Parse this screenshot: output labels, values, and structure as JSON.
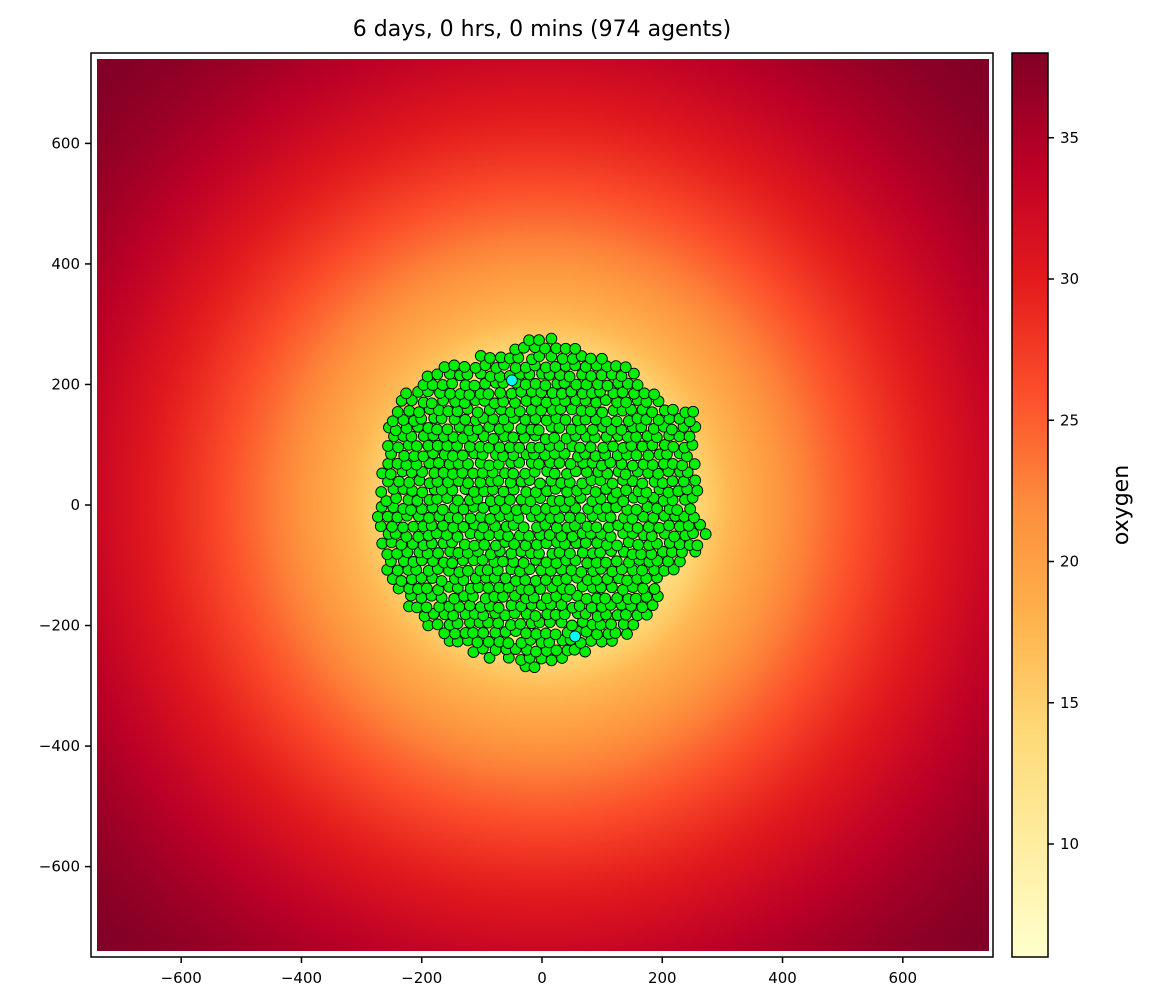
{
  "chart_data": {
    "type": "heatmap",
    "title": "6 days, 0 hrs, 0 mins (974 agents)",
    "xlim": [
      -750,
      750
    ],
    "ylim": [
      -750,
      750
    ],
    "x_ticks": [
      -600,
      -400,
      -200,
      0,
      200,
      400,
      600
    ],
    "y_ticks": [
      -600,
      -400,
      -200,
      0,
      200,
      400,
      600
    ],
    "x_tick_labels": [
      "−600",
      "−400",
      "−200",
      "0",
      "200",
      "400",
      "600"
    ],
    "y_tick_labels": [
      "−600",
      "−400",
      "−200",
      "0",
      "200",
      "400",
      "600"
    ],
    "grid": false,
    "field": {
      "name": "oxygen",
      "center": [
        0,
        0
      ],
      "value_at_center": 6.2,
      "value_at_corner": 38,
      "inner_radius": 300
    },
    "colorbar": {
      "label": "oxygen",
      "range": [
        6,
        38
      ],
      "ticks": [
        10,
        15,
        20,
        25,
        30,
        35
      ],
      "colormap": [
        "#ffffcc",
        "#ffeda0",
        "#fed976",
        "#feb24c",
        "#fd8d3c",
        "#fc4e2a",
        "#e31a1c",
        "#bd0026",
        "#800026"
      ]
    },
    "agents": {
      "count": 974,
      "marker_radius": 9,
      "fill_color": "#00ee00",
      "edge_color": "#000000",
      "highlight_color": "#00ffff",
      "highlights": [
        [
          -50,
          207
        ],
        [
          55,
          -218
        ]
      ],
      "outline": [
        [
          -270,
          30
        ],
        [
          -268,
          90
        ],
        [
          -240,
          180
        ],
        [
          -190,
          215
        ],
        [
          -140,
          240
        ],
        [
          -90,
          255
        ],
        [
          -50,
          262
        ],
        [
          -25,
          275
        ],
        [
          10,
          280
        ],
        [
          40,
          268
        ],
        [
          80,
          250
        ],
        [
          120,
          238
        ],
        [
          150,
          225
        ],
        [
          185,
          190
        ],
        [
          215,
          165
        ],
        [
          255,
          155
        ],
        [
          258,
          100
        ],
        [
          260,
          40
        ],
        [
          255,
          -20
        ],
        [
          285,
          -52
        ],
        [
          240,
          -95
        ],
        [
          205,
          -120
        ],
        [
          195,
          -160
        ],
        [
          165,
          -195
        ],
        [
          130,
          -230
        ],
        [
          90,
          -238
        ],
        [
          60,
          -255
        ],
        [
          20,
          -258
        ],
        [
          -10,
          -278
        ],
        [
          -50,
          -260
        ],
        [
          -90,
          -255
        ],
        [
          -140,
          -235
        ],
        [
          -180,
          -210
        ],
        [
          -220,
          -170
        ],
        [
          -255,
          -120
        ],
        [
          -270,
          -70
        ],
        [
          -275,
          -10
        ]
      ]
    }
  }
}
